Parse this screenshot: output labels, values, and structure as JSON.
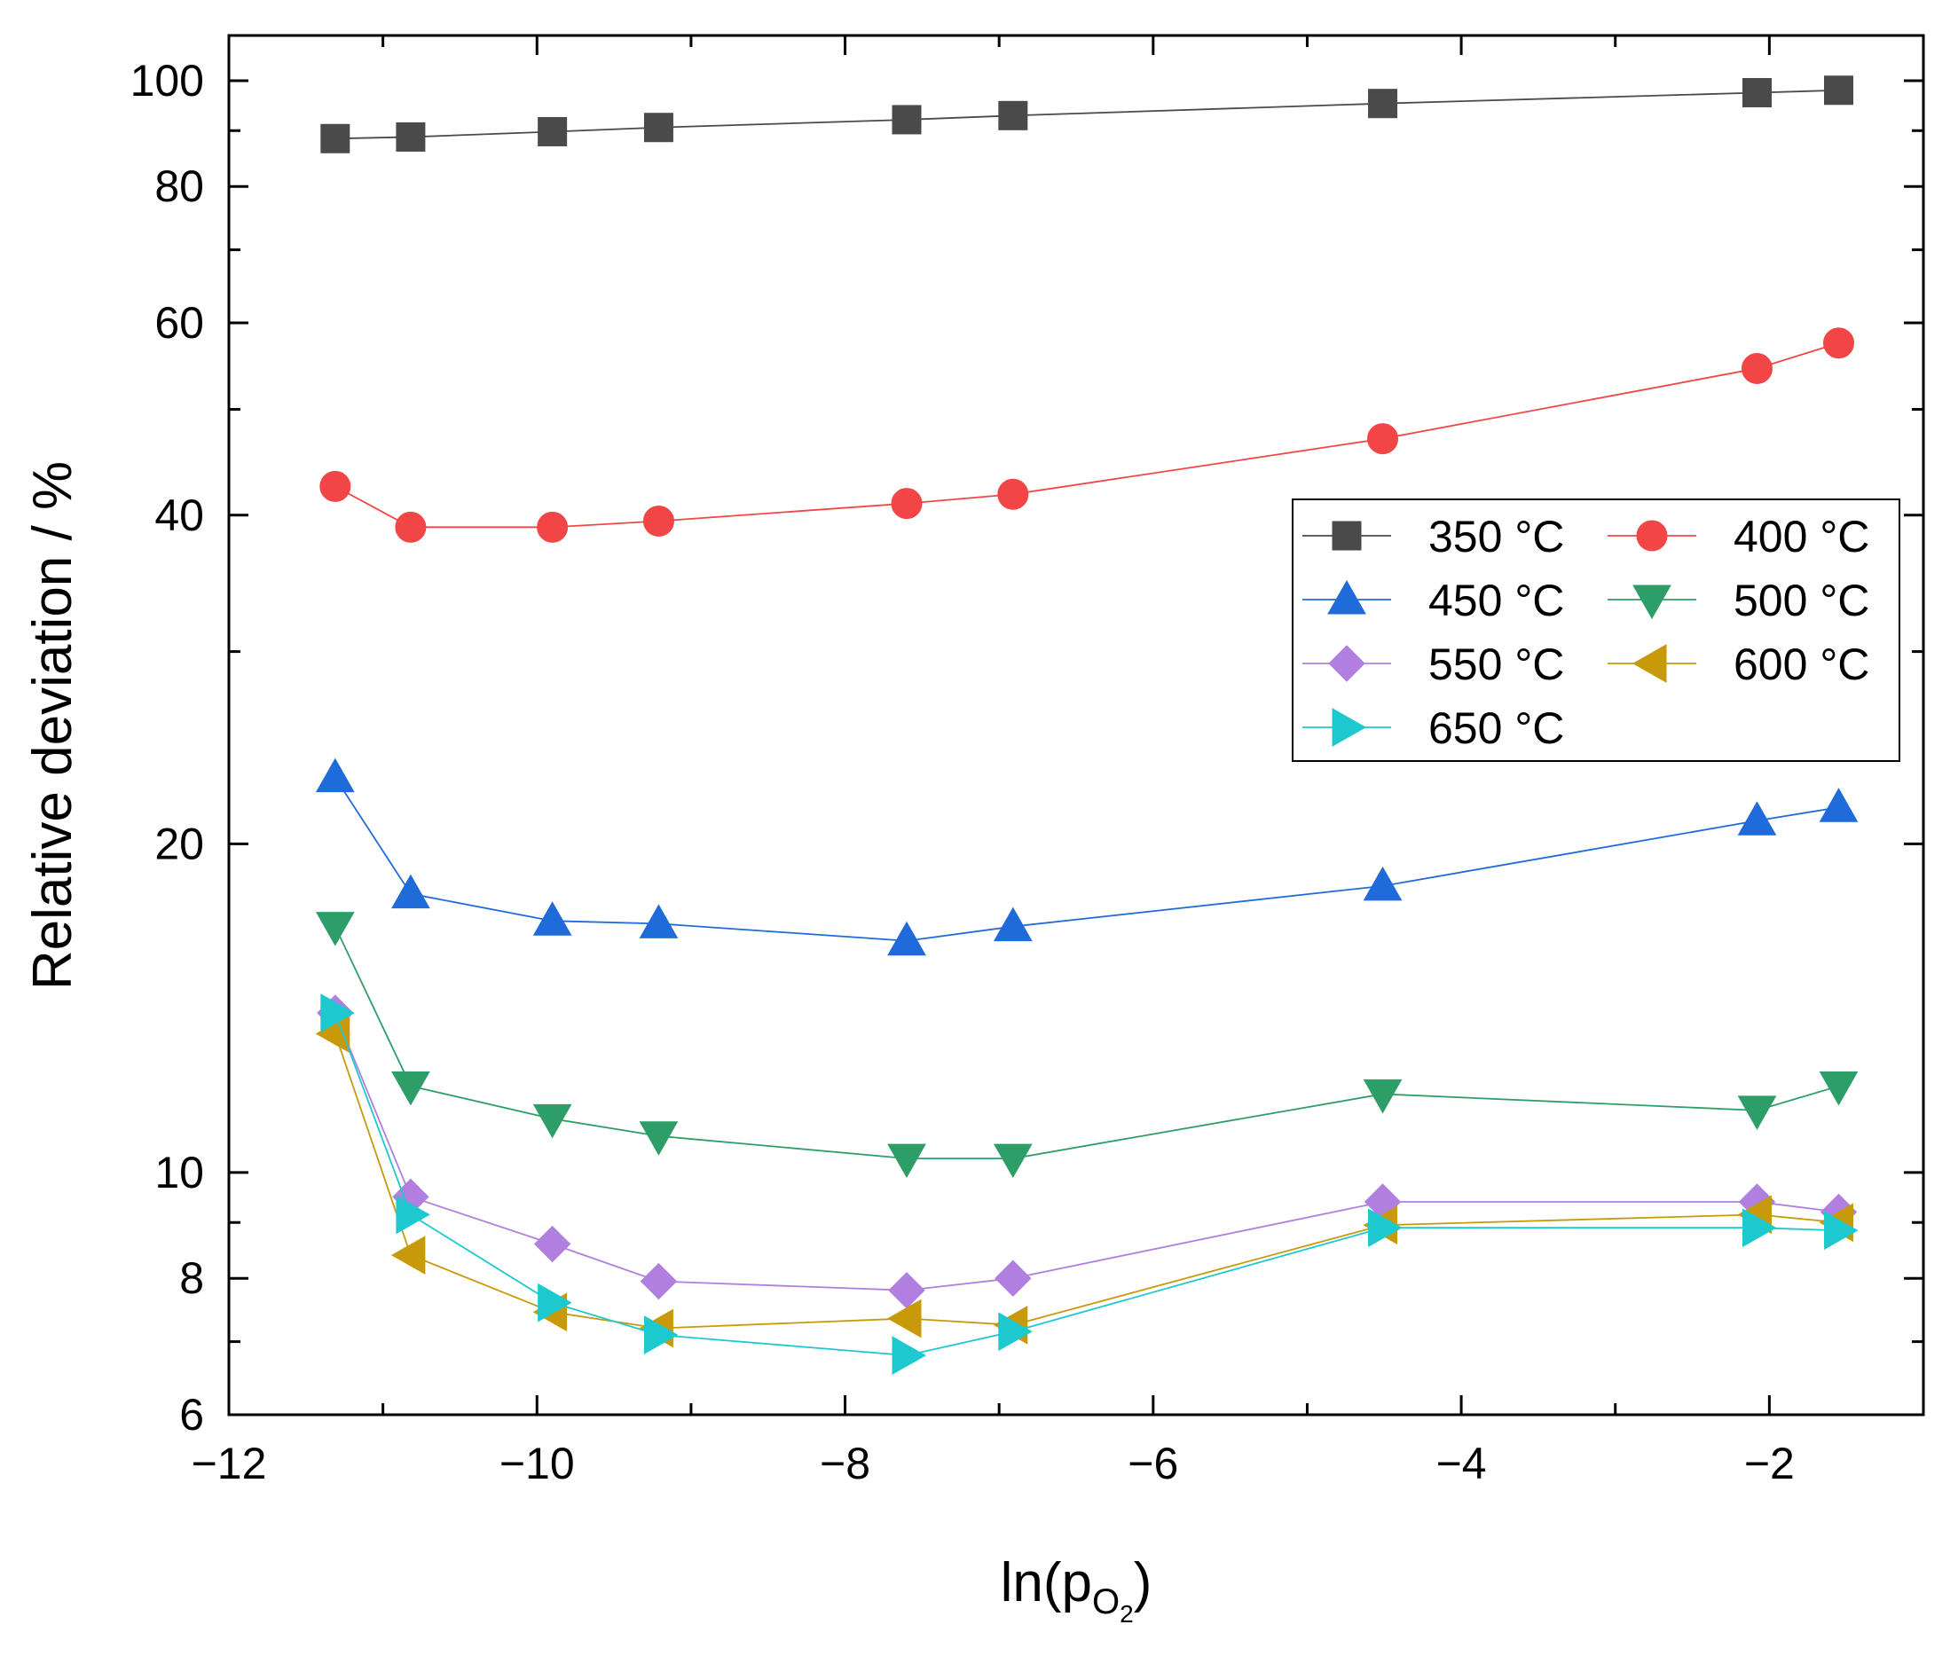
{
  "chart_data": {
    "type": "scatter",
    "title": "",
    "xlabel": "ln(p",
    "xlabel_sub": "O",
    "xlabel_subsub": "2",
    "xlabel_close": ")",
    "ylabel": "Relative deviation / %",
    "xlim": [
      -12,
      -1
    ],
    "ylim": [
      6,
      110
    ],
    "yscale": "log",
    "x_ticks": [
      -12,
      -10,
      -8,
      -6,
      -4,
      -2
    ],
    "x_tick_labels": [
      "−12",
      "−10",
      "−8",
      "−6",
      "−4",
      "−2"
    ],
    "x_minor_ticks": [
      -11,
      -9,
      -7,
      -5,
      -3,
      -1
    ],
    "y_ticks": [
      6,
      8,
      10,
      20,
      40,
      60,
      80,
      100
    ],
    "y_tick_labels": [
      "6",
      "8",
      "10",
      "20",
      "40",
      "60",
      "80",
      "100"
    ],
    "y_minor_ticks": [
      7,
      9,
      30,
      50,
      70,
      90
    ],
    "legend_position": "center-right",
    "x": [
      -11.31,
      -10.82,
      -9.9,
      -9.21,
      -7.6,
      -6.91,
      -4.51,
      -2.08,
      -1.55
    ],
    "series": [
      {
        "name": "350 °C",
        "color": "#4a4a4a",
        "marker": "square",
        "values": [
          88.5,
          88.8,
          89.8,
          90.6,
          92.1,
          92.9,
          95.3,
          97.5,
          98.0
        ]
      },
      {
        "name": "400 °C",
        "color": "#f24545",
        "marker": "circle",
        "values": [
          42.5,
          39.0,
          39.0,
          39.5,
          41.0,
          41.8,
          47.0,
          54.5,
          57.5
        ]
      },
      {
        "name": "450 °C",
        "color": "#1f6bd9",
        "marker": "triangle-up",
        "values": [
          23.0,
          18.0,
          17.0,
          16.9,
          16.3,
          16.8,
          18.3,
          21.0,
          21.6
        ]
      },
      {
        "name": "500 °C",
        "color": "#2e9e68",
        "marker": "triangle-down",
        "values": [
          16.8,
          12.0,
          11.2,
          10.8,
          10.3,
          10.3,
          11.8,
          11.4,
          12.0
        ]
      },
      {
        "name": "550 °C",
        "color": "#b07fe0",
        "marker": "diamond",
        "values": [
          14.0,
          9.5,
          8.6,
          7.95,
          7.8,
          8.0,
          9.4,
          9.4,
          9.2
        ]
      },
      {
        "name": "600 °C",
        "color": "#c89a0a",
        "marker": "triangle-left",
        "values": [
          13.4,
          8.4,
          7.45,
          7.2,
          7.35,
          7.25,
          8.95,
          9.15,
          9.0
        ]
      },
      {
        "name": "650 °C",
        "color": "#1ec8cf",
        "marker": "triangle-right",
        "values": [
          14.0,
          9.15,
          7.6,
          7.1,
          6.8,
          7.15,
          8.9,
          8.9,
          8.85
        ]
      }
    ]
  }
}
